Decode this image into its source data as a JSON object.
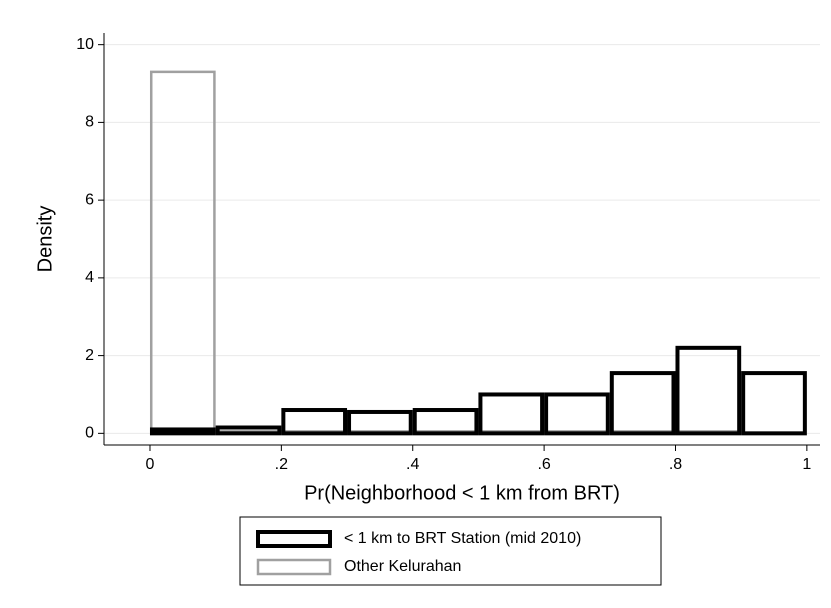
{
  "chart_data": {
    "type": "histogram",
    "x_label": "Pr(Neighborhood < 1 km from BRT)",
    "y_label": "Density",
    "bins": [
      0,
      0.1,
      0.2,
      0.3,
      0.4,
      0.5,
      0.6,
      0.7,
      0.8,
      0.9,
      1.0
    ],
    "series": [
      {
        "name": "< 1 km to BRT Station (mid 2010)",
        "color": "#000000",
        "values": [
          0.1,
          0.15,
          0.6,
          0.55,
          0.6,
          1.0,
          1.0,
          1.55,
          2.2,
          1.55
        ]
      },
      {
        "name": "Other Kelurahan",
        "color": "#a0a0a0",
        "values": [
          9.3,
          0.05,
          0.05,
          0.05,
          0.05,
          0.05,
          0.05,
          0.05,
          0.05,
          0
        ]
      }
    ],
    "xlim": [
      -0.07,
      1.02
    ],
    "ylim": [
      -0.3,
      10.3
    ],
    "xticks": [
      0,
      {
        "value": 0.2,
        "label": ".2"
      },
      {
        "value": 0.4,
        "label": ".4"
      },
      {
        "value": 0.6,
        "label": ".6"
      },
      {
        "value": 0.8,
        "label": ".8"
      },
      1
    ],
    "yticks": [
      0,
      2,
      4,
      6,
      8,
      10
    ],
    "grid": true,
    "legend": "bottom"
  }
}
